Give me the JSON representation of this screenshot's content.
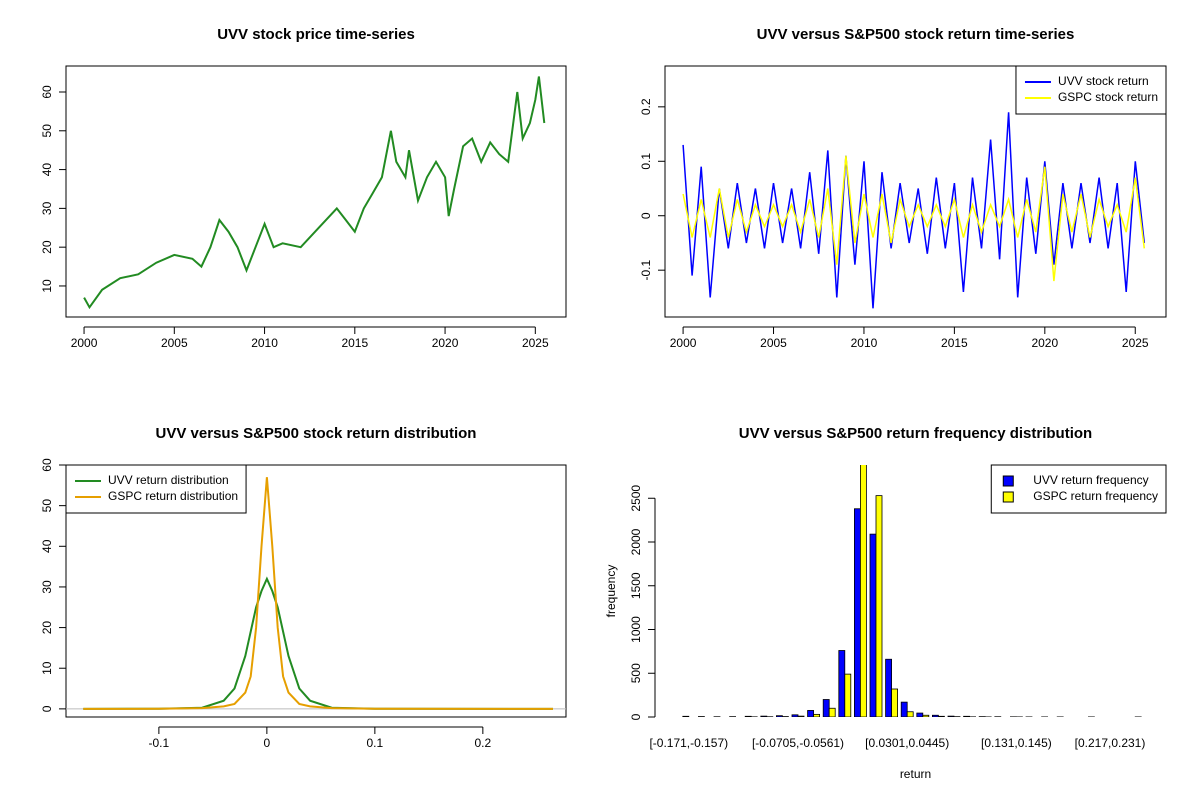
{
  "chart_data": [
    {
      "type": "line",
      "title": "UVV stock price time-series",
      "color": "#228b22",
      "x": [
        2000,
        2000.3,
        2001,
        2002,
        2003,
        2004,
        2005,
        2006,
        2006.5,
        2007,
        2007.5,
        2008,
        2008.5,
        2009,
        2009.5,
        2010,
        2010.5,
        2011,
        2012,
        2013,
        2014,
        2014.5,
        2015,
        2015.5,
        2016,
        2016.5,
        2017,
        2017.3,
        2017.8,
        2018,
        2018.5,
        2019,
        2019.5,
        2020,
        2020.2,
        2020.5,
        2021,
        2021.5,
        2022,
        2022.5,
        2023,
        2023.5,
        2024,
        2024.3,
        2024.7,
        2025,
        2025.2,
        2025.5
      ],
      "values": [
        7,
        4.5,
        9,
        12,
        13,
        16,
        18,
        17,
        15,
        20,
        27,
        24,
        20,
        14,
        20,
        26,
        20,
        21,
        20,
        25,
        30,
        27,
        24,
        30,
        34,
        38,
        50,
        42,
        38,
        45,
        32,
        38,
        42,
        38,
        28,
        35,
        46,
        48,
        42,
        47,
        44,
        42,
        60,
        48,
        52,
        58,
        64,
        52
      ],
      "xlim": [
        1999,
        2026.7
      ],
      "xticks": [
        2000,
        2005,
        2010,
        2015,
        2020,
        2025
      ],
      "ylim": [
        2,
        66.7
      ],
      "yticks": [
        10,
        20,
        30,
        40,
        50,
        60
      ]
    },
    {
      "type": "line",
      "title": "UVV versus S&P500 stock return time-series",
      "legend": "topright",
      "x": [
        2000,
        2000.5,
        2001,
        2001.5,
        2002,
        2002.5,
        2003,
        2003.5,
        2004,
        2004.5,
        2005,
        2005.5,
        2006,
        2006.5,
        2007,
        2007.5,
        2008,
        2008.5,
        2009,
        2009.5,
        2010,
        2010.5,
        2011,
        2011.5,
        2012,
        2012.5,
        2013,
        2013.5,
        2014,
        2014.5,
        2015,
        2015.5,
        2016,
        2016.5,
        2017,
        2017.5,
        2018,
        2018.5,
        2019,
        2019.5,
        2020,
        2020.5,
        2021,
        2021.5,
        2022,
        2022.5,
        2023,
        2023.5,
        2024,
        2024.5,
        2025,
        2025.5
      ],
      "series": [
        {
          "name": "UVV stock return",
          "color": "#0000ff",
          "values": [
            0.13,
            -0.11,
            0.09,
            -0.15,
            0.05,
            -0.06,
            0.06,
            -0.05,
            0.05,
            -0.06,
            0.06,
            -0.05,
            0.05,
            -0.06,
            0.08,
            -0.07,
            0.12,
            -0.15,
            0.11,
            -0.09,
            0.1,
            -0.17,
            0.08,
            -0.06,
            0.06,
            -0.05,
            0.05,
            -0.07,
            0.07,
            -0.06,
            0.06,
            -0.14,
            0.07,
            -0.06,
            0.14,
            -0.08,
            0.19,
            -0.15,
            0.07,
            -0.07,
            0.1,
            -0.09,
            0.06,
            -0.06,
            0.06,
            -0.05,
            0.07,
            -0.06,
            0.06,
            -0.14,
            0.1,
            -0.05
          ]
        },
        {
          "name": "GSPC stock return",
          "color": "#ffff00",
          "values": [
            0.04,
            -0.04,
            0.03,
            -0.04,
            0.05,
            -0.04,
            0.03,
            -0.03,
            0.02,
            -0.02,
            0.02,
            -0.02,
            0.02,
            -0.03,
            0.03,
            -0.04,
            0.05,
            -0.09,
            0.11,
            -0.05,
            0.04,
            -0.04,
            0.04,
            -0.05,
            0.03,
            -0.02,
            0.02,
            -0.02,
            0.02,
            -0.02,
            0.03,
            -0.04,
            0.02,
            -0.03,
            0.02,
            -0.02,
            0.03,
            -0.04,
            0.03,
            -0.03,
            0.09,
            -0.12,
            0.04,
            -0.03,
            0.04,
            -0.04,
            0.03,
            -0.02,
            0.02,
            -0.03,
            0.07,
            -0.06
          ]
        }
      ],
      "xlim": [
        1999,
        2026.7
      ],
      "xticks": [
        2000,
        2005,
        2010,
        2015,
        2020,
        2025
      ],
      "ylim": [
        -0.186,
        0.275
      ],
      "yticks": [
        -0.1,
        0.0,
        0.1,
        0.2
      ]
    },
    {
      "type": "line",
      "title": "UVV versus S&P500 stock return distribution",
      "legend": "topleft",
      "x": [
        -0.17,
        -0.1,
        -0.06,
        -0.04,
        -0.03,
        -0.02,
        -0.015,
        -0.01,
        -0.005,
        0,
        0.005,
        0.01,
        0.015,
        0.02,
        0.03,
        0.04,
        0.06,
        0.1,
        0.265
      ],
      "series": [
        {
          "name": "UVV return distribution",
          "color": "#228b22",
          "values": [
            0,
            0.05,
            0.3,
            2,
            5,
            13,
            19,
            25,
            29,
            32,
            29,
            25,
            19,
            13,
            5,
            2,
            0.3,
            0.05,
            0
          ]
        },
        {
          "name": "GSPC return distribution",
          "color": "#e69f00",
          "values": [
            0,
            0.02,
            0.2,
            0.6,
            1.2,
            4,
            8,
            20,
            40,
            57,
            40,
            20,
            8,
            4,
            1.2,
            0.6,
            0.2,
            0.02,
            0
          ]
        }
      ],
      "hline": 0,
      "xlim": [
        -0.186,
        0.277
      ],
      "xticks": [
        -0.1,
        0.0,
        0.1,
        0.2
      ],
      "ylim": [
        -2,
        60
      ],
      "yticks": [
        0,
        10,
        20,
        30,
        40,
        50,
        60
      ]
    },
    {
      "type": "bar",
      "title": "UVV versus S&P500 return frequency distribution",
      "legend": "topright",
      "xlabel": "return",
      "ylabel": "frequency",
      "categories": [
        "[-0.171,-0.157)",
        null,
        null,
        null,
        null,
        null,
        null,
        "[-0.0705,-0.0561)",
        null,
        null,
        null,
        null,
        null,
        null,
        "[0.0301,0.0445)",
        null,
        null,
        null,
        null,
        null,
        null,
        "[0.131,0.145)",
        null,
        null,
        null,
        null,
        null,
        "[0.217,0.231)",
        null,
        null
      ],
      "series": [
        {
          "name": "UVV return frequency",
          "color": "#0000ff",
          "values": [
            8,
            5,
            3,
            4,
            8,
            10,
            15,
            25,
            75,
            200,
            760,
            2380,
            2090,
            660,
            170,
            45,
            20,
            10,
            8,
            4,
            3,
            2,
            1,
            1,
            1,
            0,
            1,
            0,
            0,
            1
          ]
        },
        {
          "name": "GSPC return frequency",
          "color": "#ffff00",
          "values": [
            0,
            0,
            0,
            0,
            2,
            3,
            5,
            10,
            30,
            100,
            490,
            2950,
            2530,
            320,
            60,
            20,
            8,
            4,
            2,
            1,
            0,
            1,
            0,
            0,
            0,
            0,
            0,
            0,
            0,
            0
          ]
        }
      ],
      "ylim": [
        0,
        2880
      ],
      "yticks": [
        0,
        500,
        1000,
        1500,
        2000,
        2500
      ]
    }
  ]
}
